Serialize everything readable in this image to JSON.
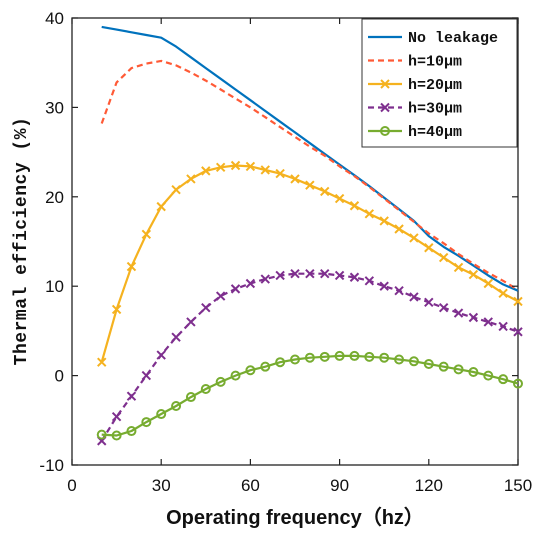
{
  "chart_data": {
    "type": "line",
    "title": "",
    "xlabel": "Operating frequency（hz）",
    "ylabel": "Thermal efficiency (%)",
    "xlim": [
      0,
      150
    ],
    "ylim": [
      -10,
      40
    ],
    "xticks": [
      0,
      30,
      60,
      90,
      120,
      150
    ],
    "yticks": [
      -10,
      0,
      10,
      20,
      30,
      40
    ],
    "xtick_labels": [
      "0",
      "30",
      "60",
      "90",
      "120",
      "150"
    ],
    "ytick_labels": [
      "-10",
      "0",
      "10",
      "20",
      "30",
      "40"
    ],
    "grid": false,
    "legend_position": "top-right",
    "x": [
      10,
      15,
      20,
      25,
      30,
      35,
      40,
      45,
      50,
      55,
      60,
      65,
      70,
      75,
      80,
      85,
      90,
      95,
      100,
      105,
      110,
      115,
      120,
      125,
      130,
      135,
      140,
      145,
      150
    ],
    "series": [
      {
        "name": "No leakage",
        "color": "#0072bd",
        "line": "solid",
        "marker": "none",
        "values": [
          39.0,
          38.7,
          38.4,
          38.1,
          37.8,
          36.8,
          35.6,
          34.4,
          33.2,
          32.0,
          30.8,
          29.6,
          28.4,
          27.2,
          26.0,
          24.8,
          23.6,
          22.4,
          21.2,
          19.9,
          18.6,
          17.3,
          15.6,
          14.4,
          13.4,
          12.3,
          11.2,
          10.2,
          9.5
        ]
      },
      {
        "name": "h=10μm",
        "color": "#ff5a36",
        "line": "dashed",
        "marker": "none",
        "values": [
          28.2,
          32.8,
          34.4,
          34.9,
          35.2,
          34.7,
          33.9,
          33.0,
          32.0,
          31.0,
          30.0,
          28.9,
          27.8,
          26.7,
          25.6,
          24.6,
          23.4,
          22.3,
          21.1,
          19.8,
          18.5,
          17.2,
          15.9,
          14.8,
          13.6,
          12.5,
          11.5,
          10.6,
          9.6
        ]
      },
      {
        "name": "h=20μm",
        "color": "#f5b21f",
        "line": "solid",
        "marker": "x",
        "values": [
          1.5,
          7.4,
          12.2,
          15.8,
          18.9,
          20.8,
          22.0,
          22.9,
          23.3,
          23.5,
          23.4,
          23.0,
          22.6,
          22.0,
          21.3,
          20.6,
          19.8,
          19.0,
          18.1,
          17.3,
          16.4,
          15.4,
          14.3,
          13.2,
          12.1,
          11.3,
          10.3,
          9.2,
          8.3
        ]
      },
      {
        "name": "h=30μm",
        "color": "#7e2f8e",
        "line": "dashed",
        "marker": "x",
        "values": [
          -7.3,
          -4.6,
          -2.3,
          0.0,
          2.3,
          4.3,
          6.0,
          7.6,
          8.9,
          9.7,
          10.3,
          10.8,
          11.2,
          11.4,
          11.4,
          11.4,
          11.2,
          11.0,
          10.6,
          10.0,
          9.5,
          8.8,
          8.2,
          7.6,
          7.0,
          6.5,
          6.0,
          5.5,
          4.9
        ]
      },
      {
        "name": "h=40μm",
        "color": "#77ac30",
        "line": "solid",
        "marker": "o",
        "values": [
          -6.6,
          -6.7,
          -6.2,
          -5.2,
          -4.3,
          -3.4,
          -2.4,
          -1.5,
          -0.7,
          0.0,
          0.6,
          1.0,
          1.5,
          1.8,
          2.0,
          2.1,
          2.2,
          2.2,
          2.1,
          2.0,
          1.8,
          1.6,
          1.3,
          1.0,
          0.7,
          0.4,
          0.0,
          -0.4,
          -0.9
        ]
      }
    ]
  }
}
